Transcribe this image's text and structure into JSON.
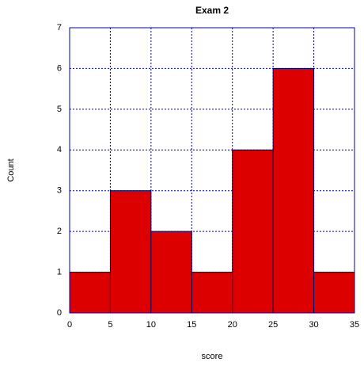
{
  "chart_data": {
    "type": "histogram",
    "title": "Exam 2",
    "x_label": "score",
    "y_label": "Count",
    "bins": [
      0,
      5,
      10,
      15,
      20,
      25,
      30,
      35
    ],
    "values": [
      1,
      3,
      2,
      1,
      4,
      6,
      1
    ],
    "color": "#dd0000",
    "xlim": [
      0,
      35
    ],
    "xticks": [
      0,
      5,
      10,
      15,
      20,
      25,
      30,
      35
    ],
    "ylim": [
      0,
      7
    ],
    "yticks": [
      0,
      1,
      2,
      3,
      4,
      5,
      6,
      7
    ],
    "grid": true
  }
}
